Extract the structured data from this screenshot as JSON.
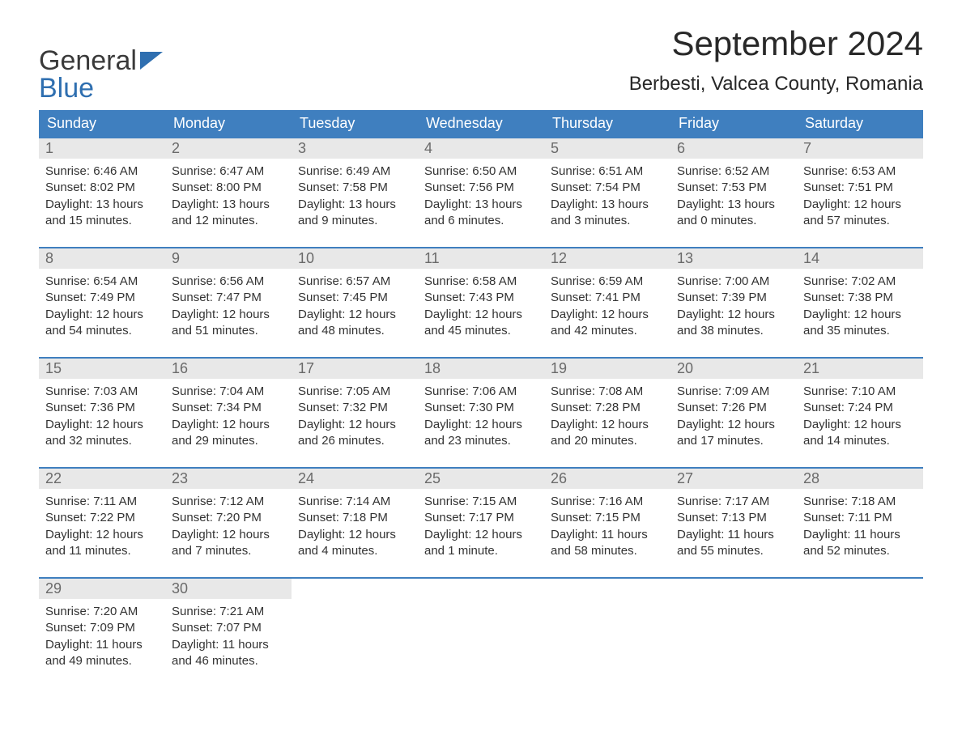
{
  "colors": {
    "header_bg": "#3f7fbf",
    "header_text": "#ffffff",
    "daynum_bg": "#e8e8e8",
    "daynum_text": "#6a6a6a",
    "body_text": "#333333",
    "week_border": "#3f7fbf",
    "page_bg": "#ffffff",
    "logo_blue": "#2f6fb0",
    "logo_dark": "#3a3a3a"
  },
  "logo": {
    "part1": "General",
    "part2": "Blue"
  },
  "title": "September 2024",
  "location": "Berbesti, Valcea County, Romania",
  "days_of_week": [
    "Sunday",
    "Monday",
    "Tuesday",
    "Wednesday",
    "Thursday",
    "Friday",
    "Saturday"
  ],
  "weeks": [
    [
      {
        "n": "1",
        "sr": "Sunrise: 6:46 AM",
        "ss": "Sunset: 8:02 PM",
        "d1": "Daylight: 13 hours",
        "d2": "and 15 minutes."
      },
      {
        "n": "2",
        "sr": "Sunrise: 6:47 AM",
        "ss": "Sunset: 8:00 PM",
        "d1": "Daylight: 13 hours",
        "d2": "and 12 minutes."
      },
      {
        "n": "3",
        "sr": "Sunrise: 6:49 AM",
        "ss": "Sunset: 7:58 PM",
        "d1": "Daylight: 13 hours",
        "d2": "and 9 minutes."
      },
      {
        "n": "4",
        "sr": "Sunrise: 6:50 AM",
        "ss": "Sunset: 7:56 PM",
        "d1": "Daylight: 13 hours",
        "d2": "and 6 minutes."
      },
      {
        "n": "5",
        "sr": "Sunrise: 6:51 AM",
        "ss": "Sunset: 7:54 PM",
        "d1": "Daylight: 13 hours",
        "d2": "and 3 minutes."
      },
      {
        "n": "6",
        "sr": "Sunrise: 6:52 AM",
        "ss": "Sunset: 7:53 PM",
        "d1": "Daylight: 13 hours",
        "d2": "and 0 minutes."
      },
      {
        "n": "7",
        "sr": "Sunrise: 6:53 AM",
        "ss": "Sunset: 7:51 PM",
        "d1": "Daylight: 12 hours",
        "d2": "and 57 minutes."
      }
    ],
    [
      {
        "n": "8",
        "sr": "Sunrise: 6:54 AM",
        "ss": "Sunset: 7:49 PM",
        "d1": "Daylight: 12 hours",
        "d2": "and 54 minutes."
      },
      {
        "n": "9",
        "sr": "Sunrise: 6:56 AM",
        "ss": "Sunset: 7:47 PM",
        "d1": "Daylight: 12 hours",
        "d2": "and 51 minutes."
      },
      {
        "n": "10",
        "sr": "Sunrise: 6:57 AM",
        "ss": "Sunset: 7:45 PM",
        "d1": "Daylight: 12 hours",
        "d2": "and 48 minutes."
      },
      {
        "n": "11",
        "sr": "Sunrise: 6:58 AM",
        "ss": "Sunset: 7:43 PM",
        "d1": "Daylight: 12 hours",
        "d2": "and 45 minutes."
      },
      {
        "n": "12",
        "sr": "Sunrise: 6:59 AM",
        "ss": "Sunset: 7:41 PM",
        "d1": "Daylight: 12 hours",
        "d2": "and 42 minutes."
      },
      {
        "n": "13",
        "sr": "Sunrise: 7:00 AM",
        "ss": "Sunset: 7:39 PM",
        "d1": "Daylight: 12 hours",
        "d2": "and 38 minutes."
      },
      {
        "n": "14",
        "sr": "Sunrise: 7:02 AM",
        "ss": "Sunset: 7:38 PM",
        "d1": "Daylight: 12 hours",
        "d2": "and 35 minutes."
      }
    ],
    [
      {
        "n": "15",
        "sr": "Sunrise: 7:03 AM",
        "ss": "Sunset: 7:36 PM",
        "d1": "Daylight: 12 hours",
        "d2": "and 32 minutes."
      },
      {
        "n": "16",
        "sr": "Sunrise: 7:04 AM",
        "ss": "Sunset: 7:34 PM",
        "d1": "Daylight: 12 hours",
        "d2": "and 29 minutes."
      },
      {
        "n": "17",
        "sr": "Sunrise: 7:05 AM",
        "ss": "Sunset: 7:32 PM",
        "d1": "Daylight: 12 hours",
        "d2": "and 26 minutes."
      },
      {
        "n": "18",
        "sr": "Sunrise: 7:06 AM",
        "ss": "Sunset: 7:30 PM",
        "d1": "Daylight: 12 hours",
        "d2": "and 23 minutes."
      },
      {
        "n": "19",
        "sr": "Sunrise: 7:08 AM",
        "ss": "Sunset: 7:28 PM",
        "d1": "Daylight: 12 hours",
        "d2": "and 20 minutes."
      },
      {
        "n": "20",
        "sr": "Sunrise: 7:09 AM",
        "ss": "Sunset: 7:26 PM",
        "d1": "Daylight: 12 hours",
        "d2": "and 17 minutes."
      },
      {
        "n": "21",
        "sr": "Sunrise: 7:10 AM",
        "ss": "Sunset: 7:24 PM",
        "d1": "Daylight: 12 hours",
        "d2": "and 14 minutes."
      }
    ],
    [
      {
        "n": "22",
        "sr": "Sunrise: 7:11 AM",
        "ss": "Sunset: 7:22 PM",
        "d1": "Daylight: 12 hours",
        "d2": "and 11 minutes."
      },
      {
        "n": "23",
        "sr": "Sunrise: 7:12 AM",
        "ss": "Sunset: 7:20 PM",
        "d1": "Daylight: 12 hours",
        "d2": "and 7 minutes."
      },
      {
        "n": "24",
        "sr": "Sunrise: 7:14 AM",
        "ss": "Sunset: 7:18 PM",
        "d1": "Daylight: 12 hours",
        "d2": "and 4 minutes."
      },
      {
        "n": "25",
        "sr": "Sunrise: 7:15 AM",
        "ss": "Sunset: 7:17 PM",
        "d1": "Daylight: 12 hours",
        "d2": "and 1 minute."
      },
      {
        "n": "26",
        "sr": "Sunrise: 7:16 AM",
        "ss": "Sunset: 7:15 PM",
        "d1": "Daylight: 11 hours",
        "d2": "and 58 minutes."
      },
      {
        "n": "27",
        "sr": "Sunrise: 7:17 AM",
        "ss": "Sunset: 7:13 PM",
        "d1": "Daylight: 11 hours",
        "d2": "and 55 minutes."
      },
      {
        "n": "28",
        "sr": "Sunrise: 7:18 AM",
        "ss": "Sunset: 7:11 PM",
        "d1": "Daylight: 11 hours",
        "d2": "and 52 minutes."
      }
    ],
    [
      {
        "n": "29",
        "sr": "Sunrise: 7:20 AM",
        "ss": "Sunset: 7:09 PM",
        "d1": "Daylight: 11 hours",
        "d2": "and 49 minutes."
      },
      {
        "n": "30",
        "sr": "Sunrise: 7:21 AM",
        "ss": "Sunset: 7:07 PM",
        "d1": "Daylight: 11 hours",
        "d2": "and 46 minutes."
      },
      null,
      null,
      null,
      null,
      null
    ]
  ]
}
